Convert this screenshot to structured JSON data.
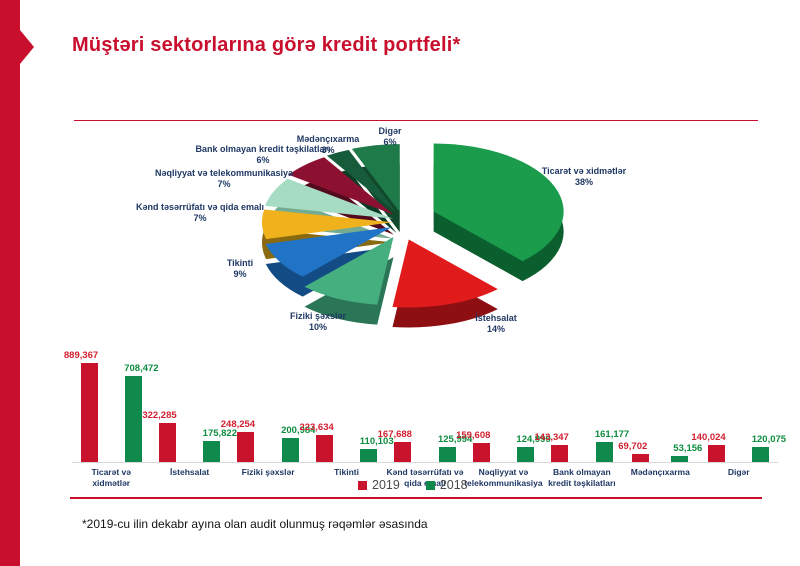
{
  "slide": {
    "title": "Müştəri sektorlarına görə kredit portfeli*",
    "footnote": "*2019-cu ilin dekabr ayına olan audit olunmuş rəqəmlər əsasında"
  },
  "colors": {
    "accent_red": "#C8102E",
    "bar_2019": "#C9122C",
    "bar_2018": "#0F8A4C",
    "value_label_2019": "#D21F2F",
    "value_label_2018": "#0E8C3F",
    "category_label_navy": "#1F3864",
    "axis_gray": "#d7d7d7"
  },
  "chart_data": [
    {
      "type": "pie",
      "unit": "%",
      "legend_position": "labels-around-pie",
      "slices": [
        {
          "label": "Ticarət və xidmətlər",
          "value": 38,
          "color": "#1A9C4C",
          "side_color": "#0B5E2D"
        },
        {
          "label": "İstehsalat",
          "value": 14,
          "color": "#E11B1B",
          "side_color": "#8E0F12"
        },
        {
          "label": "Fiziki şəxslər",
          "value": 10,
          "color": "#45AF80",
          "side_color": "#2B7656"
        },
        {
          "label": "Tikinti",
          "value": 9,
          "color": "#2173C5",
          "side_color": "#134C84"
        },
        {
          "label": "Kənd təsərrüfatı və qida emalı",
          "value": 7,
          "color": "#EFB11C",
          "side_color": "#8A6A10"
        },
        {
          "label": "Nəqliyyat və telekommunikasiya",
          "value": 7,
          "color": "#A6DCC3",
          "side_color": "#73AC92"
        },
        {
          "label": "Bank olmayan kredit təşkilatları",
          "value": 6,
          "color": "#8C1130",
          "side_color": "#530A1D"
        },
        {
          "label": "Mədənçıxarma",
          "value": 3,
          "color": "#175C3A",
          "side_color": "#0B3B24"
        },
        {
          "label": "Digər",
          "value": 6,
          "color": "#1E7A49",
          "side_color": "#10492B"
        }
      ]
    },
    {
      "type": "bar",
      "categories": [
        "Ticarət və xidmətlər",
        "İstehsalat",
        "Fiziki şəxslər",
        "Tikinti",
        "Kənd təsərrüfatı və qida emalı",
        "Nəqliyyat və telekommunikasiya",
        "Bank olmayan kredit təşkilatları",
        "Mədənçıxarma",
        "Digər"
      ],
      "series": [
        {
          "name": "2019",
          "color": "#C9122C",
          "values": [
            889367,
            322285,
            248254,
            223634,
            167688,
            159608,
            143347,
            69702,
            140024
          ]
        },
        {
          "name": "2018",
          "color": "#0F8A4C",
          "values": [
            708472,
            175822,
            200984,
            110103,
            125994,
            124999,
            161177,
            53156,
            120075
          ]
        }
      ],
      "ylim": [
        0,
        900000
      ],
      "grid": false,
      "legend_position": "bottom-center"
    }
  ]
}
